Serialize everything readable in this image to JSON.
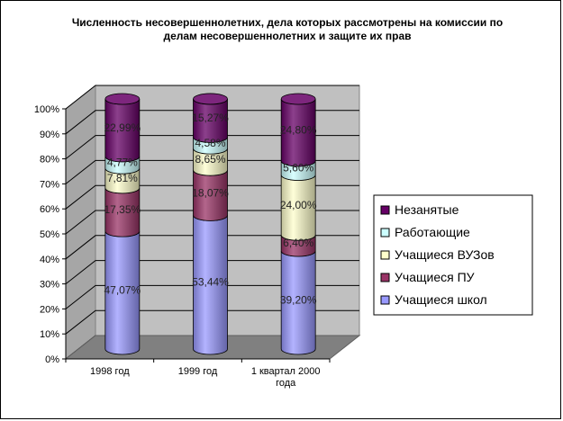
{
  "chart_data": {
    "type": "bar",
    "stacked": true,
    "three_d": true,
    "title_lines": [
      "Численность несовершеннолетних, дела которых рассмотрены на комиссии по",
      "делам несовершеннолетних и защите их прав"
    ],
    "categories": [
      "1998 год",
      "1999 год",
      "1 квартал 2000 года"
    ],
    "category_label_lines": [
      [
        "1998 год"
      ],
      [
        "1999 год"
      ],
      [
        "1 квартал 2000",
        "года"
      ]
    ],
    "y_ticks": [
      "0%",
      "10%",
      "20%",
      "30%",
      "40%",
      "50%",
      "60%",
      "70%",
      "80%",
      "90%",
      "100%"
    ],
    "ylim": [
      0,
      100
    ],
    "grid": true,
    "legend_position": "right",
    "series": [
      {
        "name": "Учащиеся школ",
        "values": [
          47.07,
          53.44,
          39.2
        ],
        "labels": [
          "47,07%",
          "53,44%",
          "39,20%"
        ],
        "color": "#9999ff"
      },
      {
        "name": "Учащиеся ПУ",
        "values": [
          17.35,
          18.07,
          6.4
        ],
        "labels": [
          "17,35%",
          "18,07%",
          "6,40%"
        ],
        "color": "#993366"
      },
      {
        "name": "Учащиеся ВУЗов",
        "values": [
          7.81,
          8.65,
          24.0
        ],
        "labels": [
          "7,81%",
          "8,65%",
          "24,00%"
        ],
        "color": "#ffffcc"
      },
      {
        "name": "Работающие",
        "values": [
          4.77,
          4.58,
          5.6
        ],
        "labels": [
          "4,77%",
          "4,58%",
          "5,60%"
        ],
        "color": "#ccffff"
      },
      {
        "name": "Незанятые",
        "values": [
          22.99,
          15.27,
          24.8
        ],
        "labels": [
          "22,99%",
          "15,27%",
          "24,80%"
        ],
        "color": "#660066"
      }
    ]
  }
}
